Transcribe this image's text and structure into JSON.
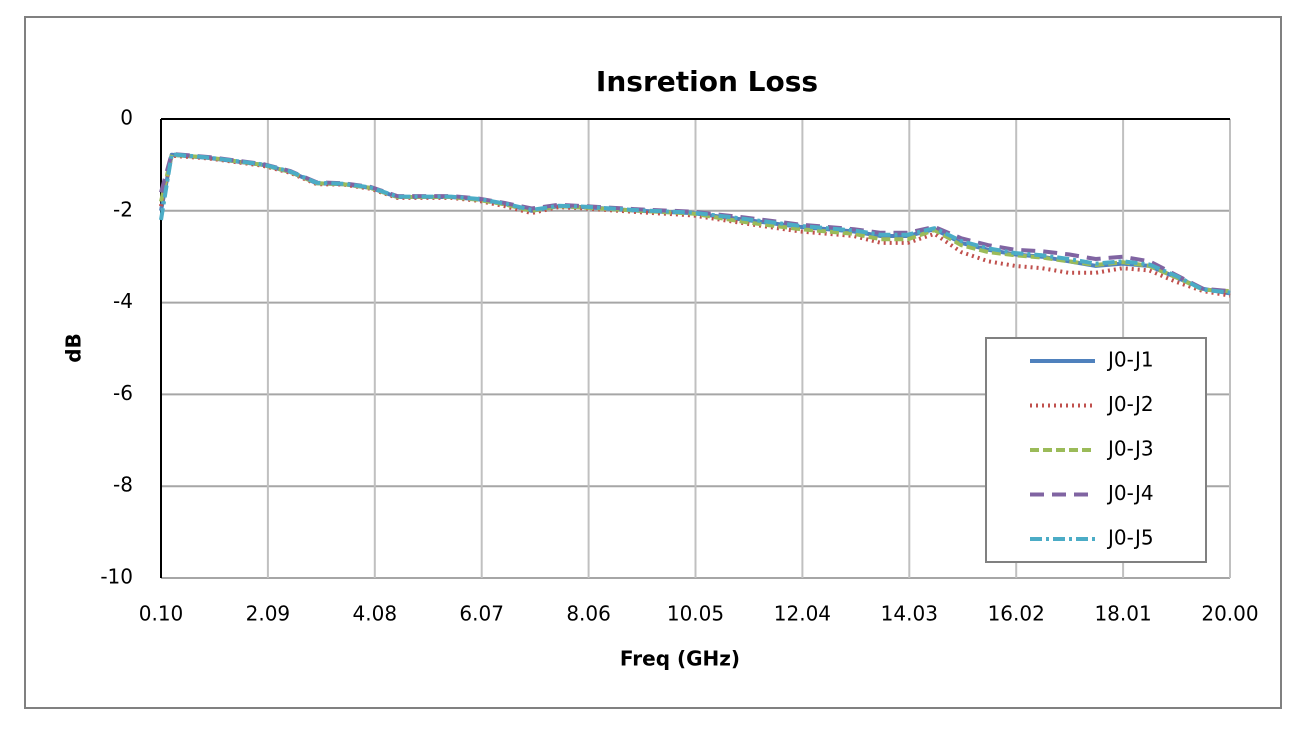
{
  "chart_data": {
    "type": "line",
    "title": "Insretion Loss",
    "x_label": "Freq (GHz)",
    "y_label": "dB",
    "x": [
      0.1,
      0.3,
      1,
      2,
      2.5,
      3,
      3.5,
      4,
      4.5,
      5,
      5.5,
      6,
      6.5,
      7,
      7.5,
      8,
      9,
      10,
      11,
      12,
      13,
      13.5,
      14,
      14.5,
      15,
      15.5,
      16,
      16.5,
      17,
      17.5,
      18,
      18.5,
      19,
      19.5,
      20
    ],
    "series": [
      {
        "name": "J0-J1",
        "color": "#4f81bd",
        "values": [
          -2.0,
          -0.78,
          -0.85,
          -1.0,
          -1.15,
          -1.4,
          -1.42,
          -1.5,
          -1.7,
          -1.7,
          -1.7,
          -1.75,
          -1.85,
          -2.0,
          -1.9,
          -1.92,
          -2.0,
          -2.05,
          -2.2,
          -2.35,
          -2.45,
          -2.55,
          -2.55,
          -2.4,
          -2.7,
          -2.85,
          -2.95,
          -3.0,
          -3.1,
          -3.2,
          -3.15,
          -3.2,
          -3.45,
          -3.7,
          -3.8
        ]
      },
      {
        "name": "J0-J2",
        "color": "#c0504d",
        "values": [
          -1.9,
          -0.8,
          -0.86,
          -1.02,
          -1.17,
          -1.42,
          -1.43,
          -1.52,
          -1.72,
          -1.72,
          -1.72,
          -1.78,
          -1.9,
          -2.05,
          -1.92,
          -1.95,
          -2.03,
          -2.1,
          -2.28,
          -2.45,
          -2.55,
          -2.7,
          -2.7,
          -2.5,
          -2.9,
          -3.1,
          -3.2,
          -3.25,
          -3.35,
          -3.35,
          -3.25,
          -3.3,
          -3.55,
          -3.75,
          -3.85
        ]
      },
      {
        "name": "J0-J3",
        "color": "#9bbb59",
        "values": [
          -1.8,
          -0.78,
          -0.84,
          -1.0,
          -1.15,
          -1.4,
          -1.42,
          -1.5,
          -1.7,
          -1.7,
          -1.7,
          -1.76,
          -1.86,
          -2.0,
          -1.9,
          -1.93,
          -2.0,
          -2.06,
          -2.25,
          -2.4,
          -2.5,
          -2.62,
          -2.62,
          -2.42,
          -2.75,
          -2.9,
          -2.97,
          -3.02,
          -3.1,
          -3.18,
          -3.12,
          -3.2,
          -3.45,
          -3.72,
          -3.75
        ]
      },
      {
        "name": "J0-J4",
        "color": "#8064a2",
        "values": [
          -1.6,
          -0.76,
          -0.83,
          -0.98,
          -1.13,
          -1.38,
          -1.4,
          -1.48,
          -1.68,
          -1.68,
          -1.68,
          -1.73,
          -1.83,
          -1.95,
          -1.87,
          -1.9,
          -1.97,
          -2.02,
          -2.15,
          -2.3,
          -2.4,
          -2.48,
          -2.48,
          -2.35,
          -2.6,
          -2.75,
          -2.85,
          -2.88,
          -2.95,
          -3.05,
          -3.0,
          -3.1,
          -3.4,
          -3.7,
          -3.75
        ]
      },
      {
        "name": "J0-J5",
        "color": "#4bacc6",
        "values": [
          -2.2,
          -0.77,
          -0.84,
          -0.99,
          -1.14,
          -1.39,
          -1.41,
          -1.49,
          -1.69,
          -1.69,
          -1.69,
          -1.74,
          -1.84,
          -1.98,
          -1.89,
          -1.91,
          -1.99,
          -2.04,
          -2.18,
          -2.33,
          -2.43,
          -2.52,
          -2.52,
          -2.38,
          -2.66,
          -2.82,
          -2.92,
          -2.97,
          -3.05,
          -3.15,
          -3.1,
          -3.17,
          -3.42,
          -3.72,
          -3.78
        ]
      }
    ],
    "xlim": [
      0.1,
      20
    ],
    "xticks": [
      {
        "value": 0.1,
        "label": "0.10"
      },
      2.09,
      4.08,
      6.07,
      8.06,
      10.05,
      12.04,
      14.03,
      16.02,
      18.01,
      {
        "value": 20,
        "label": "20.00"
      }
    ],
    "ylim": [
      -10,
      0
    ],
    "yticks": [
      0,
      -2,
      -4,
      -6,
      -8,
      -10
    ],
    "grid": true,
    "legend": "right"
  }
}
